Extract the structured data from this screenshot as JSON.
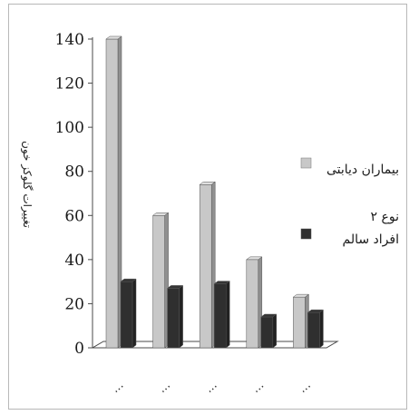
{
  "chart_data": {
    "type": "bar",
    "ylabel": "تغییرات گلوکز خون",
    "ylim": [
      0,
      140
    ],
    "yticks": [
      "0",
      "20",
      "40",
      "60",
      "80",
      "100",
      "120",
      "140"
    ],
    "categories": [
      "...",
      "...",
      "...",
      "...",
      "..."
    ],
    "series": [
      {
        "name": "بیماران دیابتی نوع ۲",
        "color": "#c8c8c8",
        "values": [
          140,
          60,
          74,
          40,
          23
        ]
      },
      {
        "name": "افراد سالم",
        "color": "#2f2f2f",
        "values": [
          30,
          27,
          29,
          14,
          16
        ]
      }
    ],
    "legend_position": "right",
    "grid": false,
    "style": "3d"
  }
}
